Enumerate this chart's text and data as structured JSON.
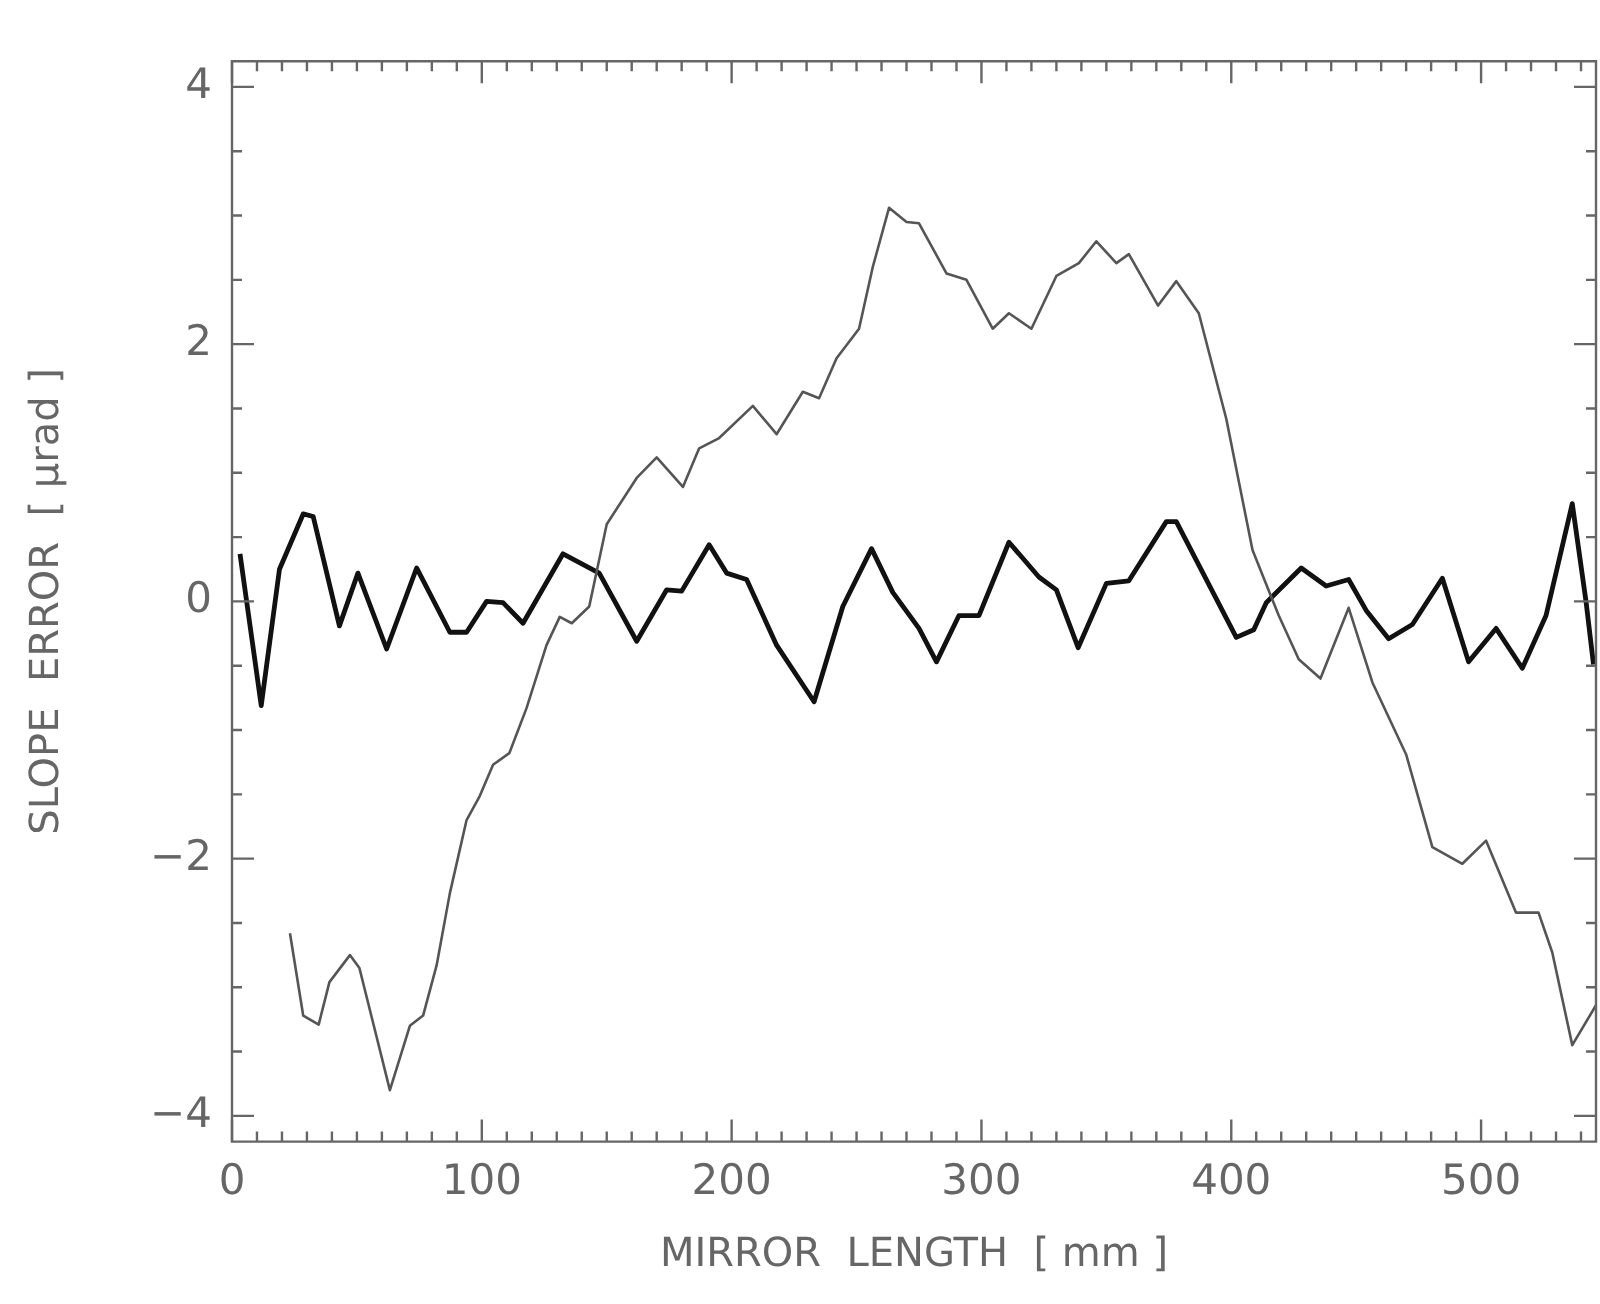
{
  "chart_data": {
    "type": "line",
    "xlabel": "MIRROR  LENGTH  [ mm ]",
    "ylabel": "SLOPE  ERROR  [ μrad ]",
    "xlim": [
      0,
      546
    ],
    "ylim": [
      -4.2,
      4.2
    ],
    "marker": "none",
    "line_style": "solid",
    "xticks": [
      0,
      {
        "value": 10,
        "label": null
      },
      {
        "value": 20,
        "label": null
      },
      {
        "value": 30,
        "label": null
      },
      {
        "value": 40,
        "label": null
      },
      {
        "value": 50,
        "label": null
      },
      {
        "value": 60,
        "label": null
      },
      {
        "value": 70,
        "label": null
      },
      {
        "value": 80,
        "label": null
      },
      {
        "value": 90,
        "label": null
      },
      100,
      {
        "value": 110,
        "label": null
      },
      {
        "value": 120,
        "label": null
      },
      {
        "value": 130,
        "label": null
      },
      {
        "value": 140,
        "label": null
      },
      {
        "value": 150,
        "label": null
      },
      {
        "value": 160,
        "label": null
      },
      {
        "value": 170,
        "label": null
      },
      {
        "value": 180,
        "label": null
      },
      {
        "value": 190,
        "label": null
      },
      200,
      {
        "value": 210,
        "label": null
      },
      {
        "value": 220,
        "label": null
      },
      {
        "value": 230,
        "label": null
      },
      {
        "value": 240,
        "label": null
      },
      {
        "value": 250,
        "label": null
      },
      {
        "value": 260,
        "label": null
      },
      {
        "value": 270,
        "label": null
      },
      {
        "value": 280,
        "label": null
      },
      {
        "value": 290,
        "label": null
      },
      300,
      {
        "value": 310,
        "label": null
      },
      {
        "value": 320,
        "label": null
      },
      {
        "value": 330,
        "label": null
      },
      {
        "value": 340,
        "label": null
      },
      {
        "value": 350,
        "label": null
      },
      {
        "value": 360,
        "label": null
      },
      {
        "value": 370,
        "label": null
      },
      {
        "value": 380,
        "label": null
      },
      {
        "value": 390,
        "label": null
      },
      400,
      {
        "value": 410,
        "label": null
      },
      {
        "value": 420,
        "label": null
      },
      {
        "value": 430,
        "label": null
      },
      {
        "value": 440,
        "label": null
      },
      {
        "value": 450,
        "label": null
      },
      {
        "value": 460,
        "label": null
      },
      {
        "value": 470,
        "label": null
      },
      {
        "value": 480,
        "label": null
      },
      {
        "value": 490,
        "label": null
      },
      500,
      {
        "value": 510,
        "label": null
      },
      {
        "value": 520,
        "label": null
      },
      {
        "value": 530,
        "label": null
      },
      {
        "value": 540,
        "label": null
      }
    ],
    "yticks": [
      {
        "value": -4,
        "label": "−4"
      },
      {
        "value": -3.5,
        "label": null
      },
      {
        "value": -3,
        "label": null
      },
      {
        "value": -2.5,
        "label": null
      },
      {
        "value": -2,
        "label": "−2"
      },
      {
        "value": -1.5,
        "label": null
      },
      {
        "value": -1,
        "label": null
      },
      {
        "value": -0.5,
        "label": null
      },
      0,
      {
        "value": 0.5,
        "label": null
      },
      {
        "value": 1,
        "label": null
      },
      {
        "value": 1.5,
        "label": null
      },
      2,
      {
        "value": 2.5,
        "label": null
      },
      {
        "value": 3,
        "label": null
      },
      {
        "value": 3.5,
        "label": null
      },
      4
    ],
    "series": [
      {
        "color": "#555555",
        "x": [
          23.2,
          28.5,
          34.7,
          39,
          47.2,
          51,
          63.2,
          71.2,
          76.5,
          81.9,
          87.2,
          93.9,
          99,
          104.5,
          111,
          117.9,
          125.9,
          131.2,
          136,
          143,
          150,
          162,
          170,
          180.5,
          187,
          195,
          208.5,
          218,
          228.5,
          235,
          242,
          251,
          256.5,
          263,
          270,
          275,
          286,
          294,
          304.5,
          311,
          320,
          330,
          339,
          346,
          354,
          359,
          370.7,
          378,
          387,
          398,
          408.5,
          419,
          427,
          435.7,
          447,
          456.5,
          470,
          480.5,
          492.5,
          502,
          514,
          523,
          528.5,
          536.5,
          546
        ],
        "values": [
          -2.58,
          -3.22,
          -3.29,
          -2.96,
          -2.75,
          -2.85,
          -3.8,
          -3.3,
          -3.22,
          -2.83,
          -2.27,
          -1.7,
          -1.52,
          -1.27,
          -1.18,
          -0.83,
          -0.34,
          -0.12,
          -0.17,
          -0.04,
          0.6,
          0.96,
          1.12,
          0.89,
          1.19,
          1.27,
          1.52,
          1.3,
          1.63,
          1.58,
          1.89,
          2.12,
          2.6,
          3.06,
          2.95,
          2.94,
          2.55,
          2.5,
          2.12,
          2.24,
          2.12,
          2.53,
          2.63,
          2.8,
          2.63,
          2.7,
          2.3,
          2.49,
          2.24,
          1.42,
          0.4,
          -0.11,
          -0.45,
          -0.6,
          -0.05,
          -0.63,
          -1.19,
          -1.91,
          -2.04,
          -1.86,
          -2.42,
          -2.42,
          -2.73,
          -3.45,
          -3.14
        ]
      },
      {
        "color": "#111111",
        "x": [
          3.2,
          11.7,
          19,
          28.5,
          32.5,
          43,
          50.4,
          61.9,
          73.9,
          87.2,
          93.9,
          101.9,
          108.5,
          116.5,
          132.5,
          147,
          162,
          174,
          180,
          191,
          198,
          206,
          218,
          233,
          244.5,
          256,
          264.5,
          275,
          282,
          291,
          299,
          311,
          323,
          330,
          338.7,
          350,
          359,
          374,
          378,
          402,
          409,
          414,
          428,
          438,
          447,
          454,
          463,
          472.5,
          484.5,
          495,
          506,
          516.5,
          526,
          536.5,
          542,
          545
        ],
        "values": [
          0.37,
          -0.81,
          0.25,
          0.68,
          0.66,
          -0.19,
          0.22,
          -0.37,
          0.26,
          -0.24,
          -0.24,
          0,
          -0.01,
          -0.17,
          0.37,
          0.22,
          -0.31,
          0.09,
          0.08,
          0.44,
          0.22,
          0.17,
          -0.34,
          -0.78,
          -0.04,
          0.41,
          0.07,
          -0.21,
          -0.47,
          -0.11,
          -0.11,
          0.46,
          0.19,
          0.09,
          -0.36,
          0.14,
          0.16,
          0.62,
          0.62,
          -0.28,
          -0.22,
          -0.01,
          0.26,
          0.12,
          0.17,
          -0.07,
          -0.29,
          -0.18,
          0.18,
          -0.47,
          -0.21,
          -0.52,
          -0.11,
          0.76,
          0,
          -0.49
        ]
      }
    ]
  }
}
